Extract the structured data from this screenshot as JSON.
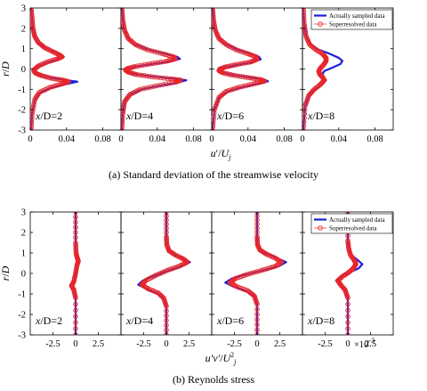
{
  "chart_data": [
    {
      "type": "line",
      "caption": "(a) Standard deviation of the streamwise velocity",
      "ylabel_main": "r",
      "ylabel_den": "D",
      "xlabel_main": "u",
      "xlabel_prime": "′",
      "xlabel_sub": "j",
      "xlabel_den": "U",
      "ylim": [
        -3,
        3
      ],
      "xlim": [
        0,
        0.1
      ],
      "yticks": [
        "3",
        "2",
        "1",
        "0",
        "-1",
        "-2",
        "-3"
      ],
      "ytick_values": [
        3,
        2,
        1,
        0,
        -1,
        -2,
        -3
      ],
      "xticks": [
        "0",
        "0.04",
        "0.08"
      ],
      "xtick_values": [
        0,
        0.04,
        0.08
      ],
      "exponent_label": "",
      "legend": {
        "position": "top-right",
        "entries": [
          {
            "label": "Actually sampled data",
            "color": "#1f1fd6",
            "style": "line"
          },
          {
            "label": "Superresolved data",
            "color": "#e8262b",
            "style": "circle"
          }
        ]
      },
      "panels": [
        {
          "station": "x/D=2",
          "label_pre": "x",
          "label_post": "/D=2",
          "series": [
            {
              "name": "Actually sampled data",
              "x": [
                0.001,
                0.002,
                0.003,
                0.005,
                0.009,
                0.016,
                0.026,
                0.034,
                0.037,
                0.032,
                0.02,
                0.009,
                0.005,
                0.004,
                0.006,
                0.012,
                0.024,
                0.04,
                0.052,
                0.042,
                0.024,
                0.011,
                0.005,
                0.002,
                0.001
              ],
              "y": [
                3.0,
                2.5,
                2.0,
                1.6,
                1.3,
                1.05,
                0.85,
                0.7,
                0.6,
                0.5,
                0.35,
                0.15,
                0.0,
                -0.1,
                -0.2,
                -0.32,
                -0.45,
                -0.55,
                -0.62,
                -0.72,
                -0.9,
                -1.15,
                -1.5,
                -2.2,
                -3.0
              ]
            },
            {
              "name": "Superresolved data",
              "x": [
                0.001,
                0.002,
                0.003,
                0.005,
                0.009,
                0.016,
                0.025,
                0.032,
                0.035,
                0.03,
                0.019,
                0.009,
                0.005,
                0.004,
                0.006,
                0.012,
                0.023,
                0.036,
                0.042,
                0.036,
                0.022,
                0.01,
                0.005,
                0.002,
                0.001
              ],
              "y": [
                3.0,
                2.5,
                2.0,
                1.6,
                1.3,
                1.05,
                0.85,
                0.7,
                0.6,
                0.5,
                0.35,
                0.15,
                0.0,
                -0.1,
                -0.2,
                -0.32,
                -0.45,
                -0.55,
                -0.62,
                -0.72,
                -0.9,
                -1.15,
                -1.5,
                -2.2,
                -3.0
              ]
            }
          ]
        },
        {
          "station": "x/D=4",
          "label_pre": "x",
          "label_post": "/D=4",
          "series": [
            {
              "name": "Actually sampled data",
              "x": [
                0.001,
                0.002,
                0.004,
                0.008,
                0.016,
                0.03,
                0.048,
                0.062,
                0.065,
                0.054,
                0.034,
                0.016,
                0.007,
                0.005,
                0.008,
                0.018,
                0.036,
                0.058,
                0.072,
                0.064,
                0.042,
                0.022,
                0.01,
                0.004,
                0.002,
                0.001
              ],
              "y": [
                3.0,
                2.4,
                1.9,
                1.5,
                1.2,
                0.95,
                0.75,
                0.6,
                0.5,
                0.38,
                0.25,
                0.12,
                0.02,
                -0.05,
                -0.15,
                -0.27,
                -0.38,
                -0.48,
                -0.55,
                -0.65,
                -0.82,
                -1.0,
                -1.25,
                -1.6,
                -2.2,
                -3.0
              ]
            },
            {
              "name": "Superresolved data",
              "x": [
                0.001,
                0.002,
                0.004,
                0.008,
                0.016,
                0.029,
                0.046,
                0.058,
                0.06,
                0.05,
                0.032,
                0.015,
                0.007,
                0.005,
                0.008,
                0.017,
                0.034,
                0.054,
                0.066,
                0.06,
                0.04,
                0.021,
                0.01,
                0.004,
                0.002,
                0.001
              ],
              "y": [
                3.0,
                2.4,
                1.9,
                1.5,
                1.2,
                0.95,
                0.75,
                0.6,
                0.5,
                0.38,
                0.25,
                0.12,
                0.02,
                -0.05,
                -0.15,
                -0.27,
                -0.38,
                -0.48,
                -0.55,
                -0.65,
                -0.82,
                -1.0,
                -1.25,
                -1.6,
                -2.2,
                -3.0
              ]
            }
          ]
        },
        {
          "station": "x/D=6",
          "label_pre": "x",
          "label_post": "/D=6",
          "series": [
            {
              "name": "Actually sampled data",
              "x": [
                0.001,
                0.002,
                0.004,
                0.008,
                0.016,
                0.028,
                0.042,
                0.052,
                0.054,
                0.046,
                0.03,
                0.016,
                0.009,
                0.008,
                0.012,
                0.024,
                0.042,
                0.058,
                0.062,
                0.05,
                0.032,
                0.017,
                0.008,
                0.003,
                0.001
              ],
              "y": [
                3.0,
                2.4,
                1.9,
                1.5,
                1.2,
                0.95,
                0.75,
                0.6,
                0.48,
                0.35,
                0.22,
                0.1,
                0.0,
                -0.08,
                -0.18,
                -0.3,
                -0.42,
                -0.52,
                -0.6,
                -0.72,
                -0.9,
                -1.1,
                -1.4,
                -2.0,
                -3.0
              ]
            },
            {
              "name": "Superresolved data",
              "x": [
                0.001,
                0.002,
                0.004,
                0.008,
                0.016,
                0.027,
                0.04,
                0.049,
                0.05,
                0.043,
                0.028,
                0.015,
                0.009,
                0.008,
                0.012,
                0.023,
                0.04,
                0.054,
                0.058,
                0.047,
                0.03,
                0.016,
                0.008,
                0.003,
                0.001
              ],
              "y": [
                3.0,
                2.4,
                1.9,
                1.5,
                1.2,
                0.95,
                0.75,
                0.6,
                0.48,
                0.35,
                0.22,
                0.1,
                0.0,
                -0.08,
                -0.18,
                -0.3,
                -0.42,
                -0.52,
                -0.6,
                -0.72,
                -0.9,
                -1.1,
                -1.4,
                -2.0,
                -3.0
              ]
            }
          ]
        },
        {
          "station": "x/D=8",
          "label_pre": "x",
          "label_post": "/D=8",
          "series": [
            {
              "name": "Actually sampled data",
              "x": [
                0.001,
                0.002,
                0.004,
                0.009,
                0.018,
                0.03,
                0.04,
                0.044,
                0.042,
                0.032,
                0.024,
                0.022,
                0.024,
                0.026,
                0.022,
                0.014,
                0.007,
                0.003,
                0.001
              ],
              "y": [
                3.0,
                2.2,
                1.6,
                1.2,
                0.95,
                0.75,
                0.55,
                0.4,
                0.25,
                0.05,
                -0.1,
                -0.25,
                -0.4,
                -0.55,
                -0.75,
                -1.0,
                -1.3,
                -1.8,
                -3.0
              ]
            },
            {
              "name": "Superresolved data",
              "x": [
                0.001,
                0.002,
                0.004,
                0.008,
                0.015,
                0.022,
                0.026,
                0.026,
                0.024,
                0.02,
                0.018,
                0.019,
                0.022,
                0.024,
                0.02,
                0.013,
                0.007,
                0.003,
                0.001
              ],
              "y": [
                3.0,
                2.2,
                1.6,
                1.2,
                0.95,
                0.75,
                0.55,
                0.4,
                0.25,
                0.05,
                -0.1,
                -0.25,
                -0.4,
                -0.55,
                -0.75,
                -1.0,
                -1.3,
                -1.8,
                -3.0
              ]
            }
          ]
        }
      ]
    },
    {
      "type": "line",
      "caption": "(b) Reynolds stress",
      "ylabel_main": "r",
      "ylabel_den": "D",
      "xlabel_main": "u′v′",
      "xlabel_prime": "",
      "xlabel_sub": "j",
      "xlabel_den": "U",
      "xlabel_den_sup": "2",
      "ylim": [
        -3,
        3
      ],
      "xlim": [
        -5,
        5
      ],
      "yticks": [
        "3",
        "2",
        "1",
        "0",
        "-1",
        "-2",
        "-3"
      ],
      "ytick_values": [
        3,
        2,
        1,
        0,
        -1,
        -2,
        -3
      ],
      "xticks": [
        "-2.5",
        "0",
        "2.5"
      ],
      "xtick_values": [
        -2.5,
        0,
        2.5
      ],
      "exponent_label": "×10",
      "exponent_power": "-3",
      "legend": {
        "position": "top-right",
        "entries": [
          {
            "label": "Actually sampled data",
            "color": "#1f1fd6",
            "style": "line"
          },
          {
            "label": "Superresolved data",
            "color": "#e8262b",
            "style": "circle"
          }
        ]
      },
      "panels": [
        {
          "station": "x/D=2",
          "label_pre": "x",
          "label_post": "/D=2",
          "series": [
            {
              "name": "Actually sampled data",
              "x": [
                0,
                0,
                0.05,
                0.15,
                0.3,
                0.15,
                0,
                -0.2,
                -0.45,
                -0.2,
                0,
                0
              ],
              "y": [
                3.0,
                1.5,
                1.0,
                0.8,
                0.6,
                0.4,
                0.0,
                -0.4,
                -0.6,
                -0.8,
                -1.2,
                -3.0
              ]
            },
            {
              "name": "Superresolved data",
              "x": [
                0,
                0,
                0.05,
                0.15,
                0.3,
                0.15,
                0,
                -0.2,
                -0.45,
                -0.2,
                0,
                0
              ],
              "y": [
                3.0,
                1.5,
                1.0,
                0.8,
                0.6,
                0.4,
                0.0,
                -0.4,
                -0.6,
                -0.8,
                -1.2,
                -3.0
              ]
            }
          ]
        },
        {
          "station": "x/D=4",
          "label_pre": "x",
          "label_post": "/D=4",
          "series": [
            {
              "name": "Actually sampled data",
              "x": [
                0,
                0,
                0.05,
                0.3,
                1.0,
                2.0,
                2.6,
                1.6,
                0.2,
                -1.2,
                -2.6,
                -3.1,
                -2.2,
                -1.0,
                -0.3,
                0,
                0
              ],
              "y": [
                3.0,
                1.8,
                1.4,
                1.1,
                0.9,
                0.7,
                0.55,
                0.35,
                0.15,
                -0.1,
                -0.35,
                -0.55,
                -0.75,
                -0.95,
                -1.2,
                -1.6,
                -3.0
              ]
            },
            {
              "name": "Superresolved data",
              "x": [
                0,
                0,
                0.05,
                0.3,
                1.0,
                1.9,
                2.3,
                1.4,
                0.1,
                -1.2,
                -2.3,
                -2.7,
                -2.0,
                -0.9,
                -0.3,
                0,
                0
              ],
              "y": [
                3.0,
                1.8,
                1.4,
                1.1,
                0.9,
                0.7,
                0.55,
                0.35,
                0.15,
                -0.1,
                -0.35,
                -0.55,
                -0.75,
                -0.95,
                -1.2,
                -1.6,
                -3.0
              ]
            }
          ]
        },
        {
          "station": "x/D=6",
          "label_pre": "x",
          "label_post": "/D=6",
          "series": [
            {
              "name": "Actually sampled data",
              "x": [
                0,
                0,
                0.05,
                0.3,
                1.0,
                2.2,
                3.2,
                2.4,
                0.6,
                -1.2,
                -2.8,
                -3.5,
                -2.6,
                -1.2,
                -0.3,
                0,
                0
              ],
              "y": [
                3.0,
                1.8,
                1.4,
                1.15,
                0.95,
                0.75,
                0.55,
                0.35,
                0.15,
                -0.05,
                -0.25,
                -0.45,
                -0.65,
                -0.85,
                -1.1,
                -1.5,
                -3.0
              ]
            },
            {
              "name": "Superresolved data",
              "x": [
                0,
                0,
                0.05,
                0.3,
                1.0,
                2.0,
                2.7,
                2.0,
                0.5,
                -1.1,
                -2.4,
                -3.0,
                -2.2,
                -1.0,
                -0.3,
                0,
                0
              ],
              "y": [
                3.0,
                1.8,
                1.4,
                1.15,
                0.95,
                0.75,
                0.55,
                0.35,
                0.15,
                -0.05,
                -0.25,
                -0.45,
                -0.65,
                -0.85,
                -1.1,
                -1.5,
                -3.0
              ]
            }
          ]
        },
        {
          "station": "x/D=8",
          "label_pre": "x",
          "label_post": "/D=8",
          "series": [
            {
              "name": "Actually sampled data",
              "x": [
                0,
                0,
                0.1,
                0.4,
                1.1,
                1.6,
                1.2,
                0.2,
                -0.8,
                -1.3,
                -0.9,
                -0.3,
                0,
                0
              ],
              "y": [
                3.0,
                1.6,
                1.2,
                0.9,
                0.65,
                0.45,
                0.25,
                0.05,
                -0.15,
                -0.35,
                -0.55,
                -0.8,
                -1.2,
                -3.0
              ]
            },
            {
              "name": "Superresolved data",
              "x": [
                0,
                0,
                0.1,
                0.3,
                0.7,
                0.9,
                0.6,
                0.1,
                -0.6,
                -1.1,
                -0.8,
                -0.3,
                0,
                0
              ],
              "y": [
                3.0,
                1.6,
                1.2,
                0.9,
                0.65,
                0.45,
                0.25,
                0.05,
                -0.15,
                -0.35,
                -0.55,
                -0.8,
                -1.2,
                -3.0
              ]
            }
          ]
        }
      ]
    }
  ]
}
